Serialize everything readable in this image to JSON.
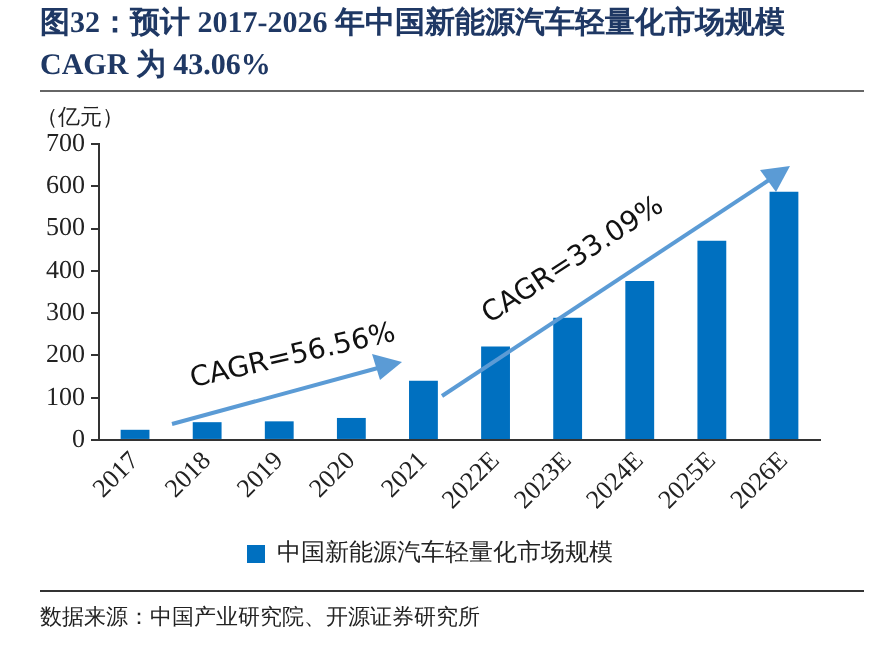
{
  "chart_data": {
    "type": "bar",
    "title": "图32：预计 2017-2026 年中国新能源汽车轻量化市场规模 CAGR 为 43.06%",
    "ylabel": "（亿元）",
    "categories": [
      "2017",
      "2018",
      "2019",
      "2020",
      "2021",
      "2022E",
      "2023E",
      "2024E",
      "2025E",
      "2026E"
    ],
    "series": [
      {
        "name": "中国新能源汽车轻量化市场规模",
        "color": "#0070c0",
        "values": [
          24,
          42,
          44,
          52,
          140,
          221,
          289,
          376,
          471,
          587
        ]
      }
    ],
    "ylim": [
      0,
      700
    ],
    "yticks": [
      0,
      100,
      200,
      300,
      400,
      500,
      600,
      700
    ],
    "grid": false,
    "legend": "bottom",
    "annotations": [
      "CAGR=56.56%",
      "CAGR=33.09%",
      "数据来源：中国产业研究院、开源证券研究所"
    ]
  }
}
